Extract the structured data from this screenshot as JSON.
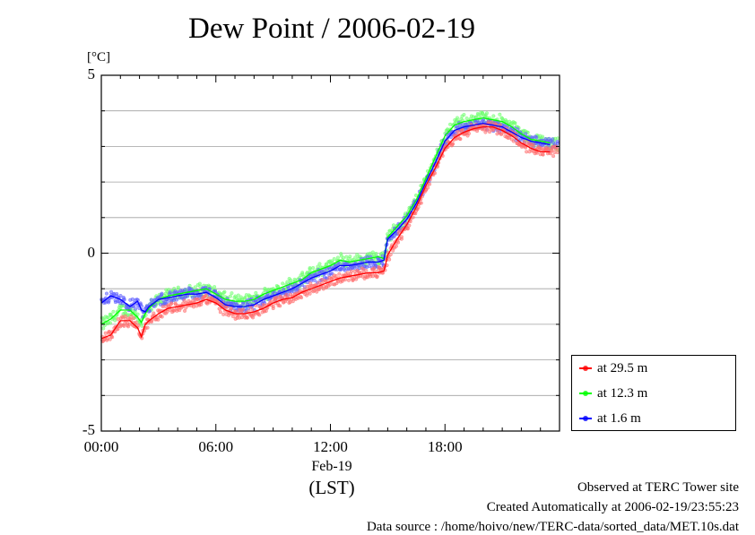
{
  "title": "Dew Point / 2006-02-19",
  "unit_label": "[°C]",
  "date_label": "Feb-19",
  "footer": {
    "line1": "Observed at TERC Tower site",
    "line2": "Created Automatically at 2006-02-19/23:55:23",
    "line3": "Data source : /home/hoivo/new/TERC-data/sorted_data/MET.10s.dat"
  },
  "chart_data": {
    "type": "line",
    "title": "Dew Point / 2006-02-19",
    "xlabel": "(LST)",
    "ylabel": "[°C]",
    "x_unit": "hour of day (LST)",
    "xlim": [
      0,
      24
    ],
    "ylim": [
      -5,
      5
    ],
    "x_ticks": [
      {
        "value": 0,
        "label": "00:00"
      },
      {
        "value": 6,
        "label": "06:00"
      },
      {
        "value": 12,
        "label": "12:00"
      },
      {
        "value": 18,
        "label": "18:00"
      }
    ],
    "y_ticks": [
      {
        "value": 5,
        "label": "5"
      },
      {
        "value": 0,
        "label": "0"
      },
      {
        "value": -5,
        "label": "-5"
      }
    ],
    "grid": true,
    "legend_position": "outside-bottom-right",
    "x": [
      0,
      0.5,
      1,
      1.5,
      1.9,
      2.1,
      2.3,
      2.5,
      3,
      3.5,
      4,
      4.5,
      5,
      5.5,
      6,
      6.5,
      7,
      7.5,
      8,
      8.5,
      9,
      9.5,
      10,
      10.5,
      11,
      11.5,
      12,
      12.5,
      13,
      13.5,
      14,
      14.5,
      14.8,
      14.9,
      15,
      15.5,
      16,
      16.5,
      17,
      17.5,
      18,
      18.5,
      19,
      19.5,
      20,
      20.5,
      21,
      21.5,
      22,
      22.5,
      23,
      23.5
    ],
    "series": [
      {
        "name": "at 29.5 m",
        "color": "#ff0000",
        "values": [
          -2.4,
          -2.3,
          -1.9,
          -1.9,
          -2.1,
          -2.35,
          -2.0,
          -1.9,
          -1.7,
          -1.55,
          -1.5,
          -1.45,
          -1.4,
          -1.3,
          -1.4,
          -1.6,
          -1.7,
          -1.7,
          -1.65,
          -1.55,
          -1.4,
          -1.3,
          -1.25,
          -1.1,
          -1.0,
          -0.9,
          -0.8,
          -0.7,
          -0.65,
          -0.6,
          -0.55,
          -0.55,
          -0.5,
          -0.3,
          -0.05,
          0.4,
          0.8,
          1.3,
          1.9,
          2.4,
          2.95,
          3.25,
          3.4,
          3.5,
          3.55,
          3.55,
          3.45,
          3.3,
          3.1,
          2.95,
          2.85,
          2.85
        ]
      },
      {
        "name": "at 12.3 m",
        "color": "#00ff00",
        "values": [
          -2.0,
          -1.85,
          -1.6,
          -1.6,
          -1.8,
          -1.95,
          -1.7,
          -1.55,
          -1.3,
          -1.2,
          -1.15,
          -1.1,
          -1.05,
          -1.0,
          -1.15,
          -1.3,
          -1.35,
          -1.35,
          -1.3,
          -1.15,
          -1.05,
          -0.95,
          -0.85,
          -0.75,
          -0.55,
          -0.45,
          -0.35,
          -0.2,
          -0.25,
          -0.2,
          -0.15,
          -0.1,
          -0.15,
          0.15,
          0.45,
          0.75,
          1.05,
          1.5,
          2.1,
          2.7,
          3.3,
          3.6,
          3.7,
          3.75,
          3.8,
          3.75,
          3.7,
          3.55,
          3.35,
          3.2,
          3.15,
          3.1
        ]
      },
      {
        "name": "at 1.6 m",
        "color": "#0000ff",
        "values": [
          -1.4,
          -1.2,
          -1.3,
          -1.5,
          -1.35,
          -1.6,
          -1.65,
          -1.5,
          -1.3,
          -1.25,
          -1.2,
          -1.15,
          -1.15,
          -1.1,
          -1.25,
          -1.45,
          -1.5,
          -1.5,
          -1.45,
          -1.3,
          -1.2,
          -1.1,
          -1.0,
          -0.85,
          -0.7,
          -0.6,
          -0.5,
          -0.35,
          -0.35,
          -0.3,
          -0.25,
          -0.25,
          -0.2,
          0.1,
          0.4,
          0.65,
          0.95,
          1.4,
          2.0,
          2.55,
          3.15,
          3.45,
          3.55,
          3.6,
          3.65,
          3.6,
          3.55,
          3.4,
          3.25,
          3.15,
          3.1,
          3.05
        ]
      }
    ]
  }
}
